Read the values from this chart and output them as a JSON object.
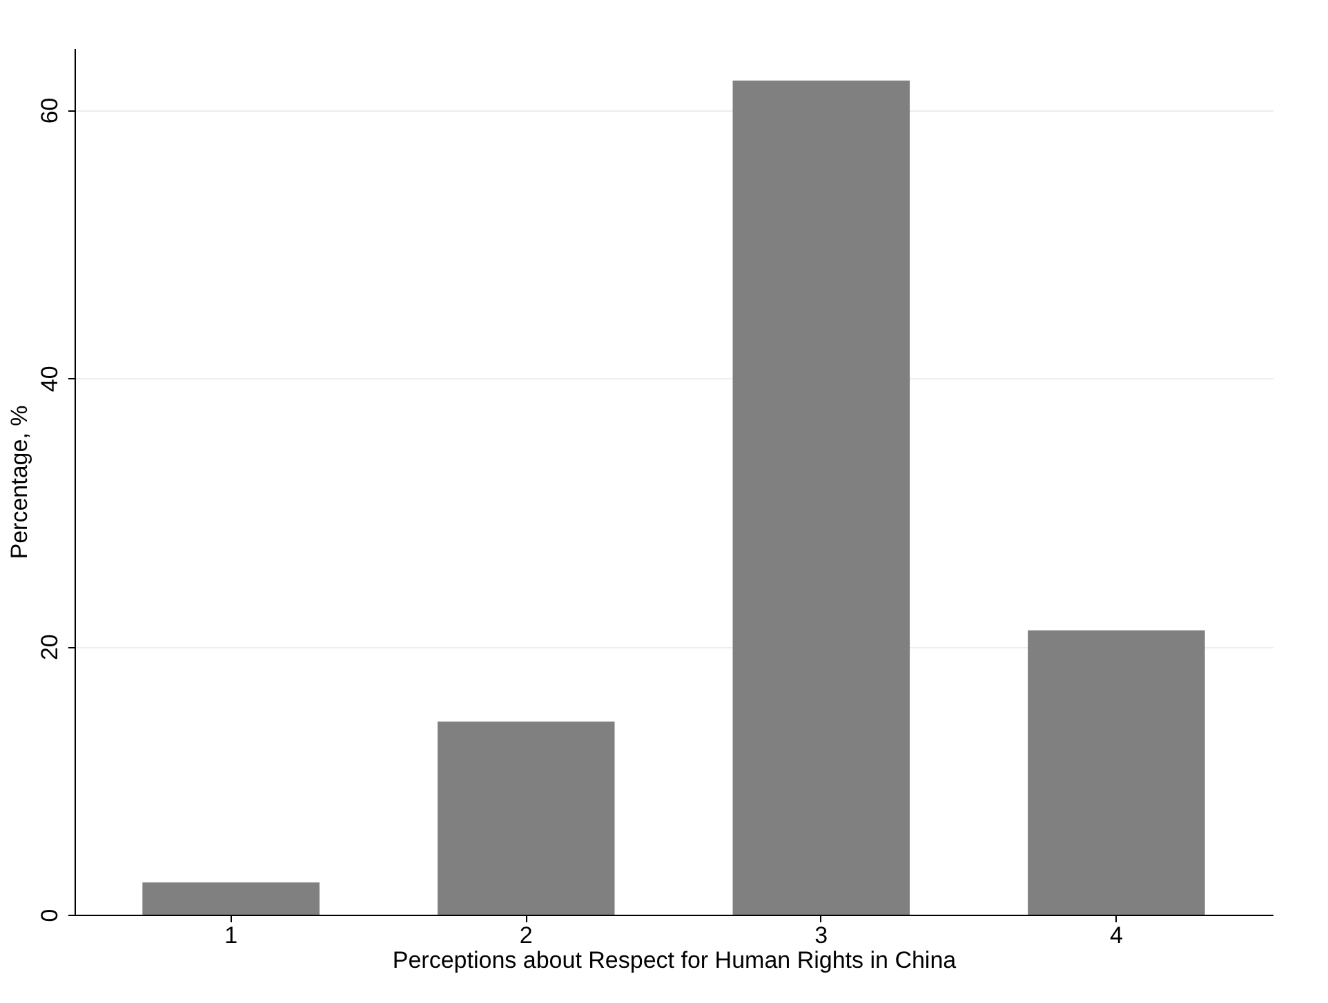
{
  "chart_data": {
    "type": "bar",
    "xlabel": "Perceptions about Respect for Human Rights in China",
    "ylabel": "Percentage, %",
    "categories": [
      "1",
      "2",
      "3",
      "4"
    ],
    "values": [
      2.4,
      14.4,
      62.2,
      21.2
    ],
    "color": "#808080",
    "ylim": [
      0,
      64.6
    ],
    "yticks": [
      0,
      20,
      40,
      60
    ],
    "grid": "y"
  }
}
